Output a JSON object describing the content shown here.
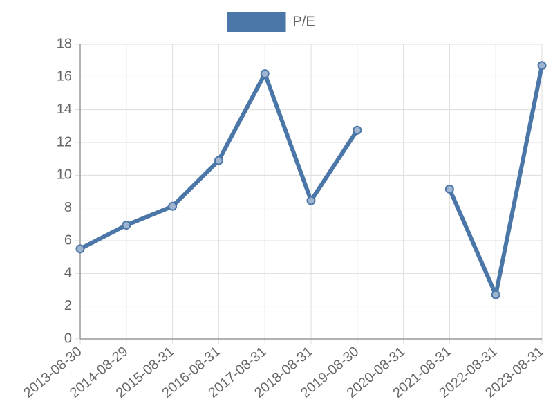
{
  "chart_data": {
    "type": "line",
    "categories": [
      "2013-08-30",
      "2014-08-29",
      "2015-08-31",
      "2016-08-31",
      "2017-08-31",
      "2018-08-31",
      "2019-08-30",
      "2020-08-31",
      "2021-08-31",
      "2022-08-31",
      "2023-08-31"
    ],
    "series": [
      {
        "name": "P/E",
        "color": "#4a76a8",
        "values": [
          5.5,
          6.95,
          8.1,
          10.9,
          16.2,
          8.45,
          12.75,
          null,
          9.15,
          2.7,
          16.7
        ]
      }
    ],
    "ylim": [
      0,
      18
    ],
    "yticks": [
      0,
      2,
      4,
      6,
      8,
      10,
      12,
      14,
      16,
      18
    ],
    "grid": true,
    "legend": "top"
  }
}
